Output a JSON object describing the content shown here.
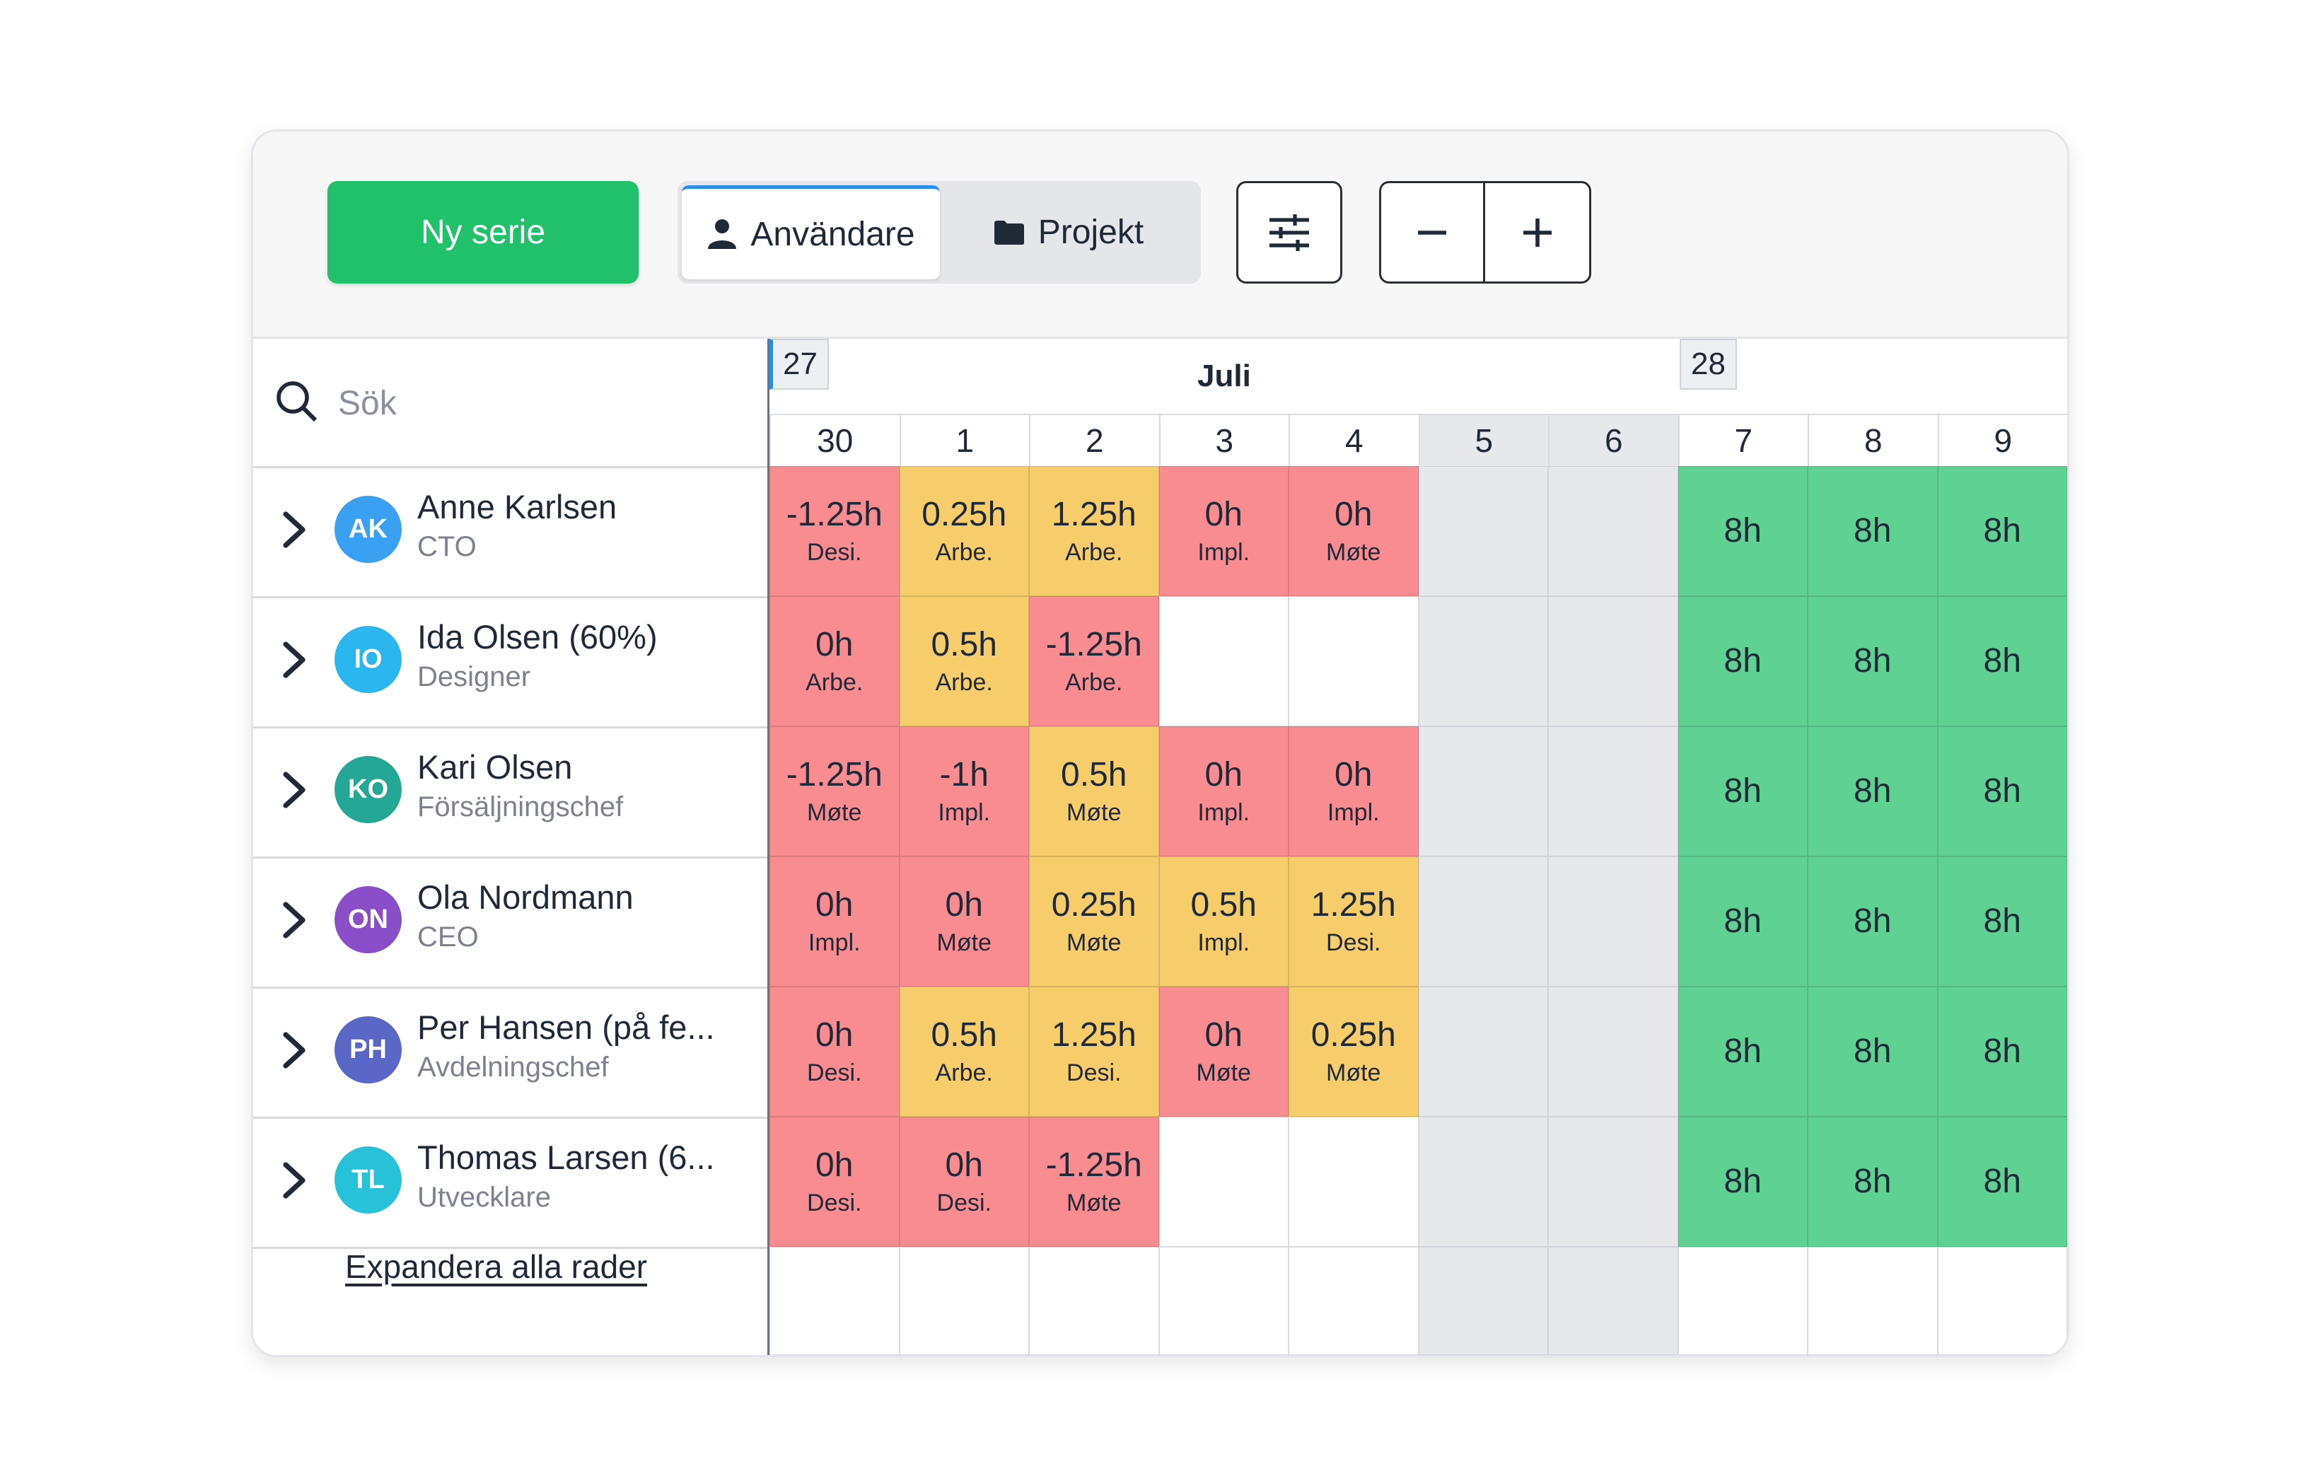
{
  "toolbar": {
    "new_series_label": "Ny serie",
    "view_users_label": "Användare",
    "view_projects_label": "Projekt",
    "filter_icon": "sliders-icon",
    "zoom_out_icon": "minus-icon",
    "zoom_in_icon": "plus-icon"
  },
  "search": {
    "placeholder": "Sök"
  },
  "calendar": {
    "week_a": "27",
    "week_b": "28",
    "month": "Juli",
    "days": [
      "30",
      "1",
      "2",
      "3",
      "4",
      "5",
      "6",
      "7",
      "8",
      "9"
    ],
    "weekend_days": [
      "5",
      "6"
    ]
  },
  "people": [
    {
      "initials": "AK",
      "name": "Anne Karlsen",
      "role": "CTO",
      "avatar_color": "#3aa0f2"
    },
    {
      "initials": "IO",
      "name": "Ida Olsen (60%)",
      "role": "Designer",
      "avatar_color": "#2bb6f0"
    },
    {
      "initials": "KO",
      "name": "Kari Olsen",
      "role": "Försäljningschef",
      "avatar_color": "#24a795"
    },
    {
      "initials": "ON",
      "name": "Ola Nordmann",
      "role": "CEO",
      "avatar_color": "#8a4fc8"
    },
    {
      "initials": "PH",
      "name": "Per Hansen (på fe...",
      "role": "Avdelningschef",
      "avatar_color": "#5b67c7"
    },
    {
      "initials": "TL",
      "name": "Thomas Larsen (6...",
      "role": "Utvecklare",
      "avatar_color": "#27c1d9"
    }
  ],
  "rows": [
    [
      [
        "-1.25h",
        "Desi.",
        "red"
      ],
      [
        "0.25h",
        "Arbe.",
        "yellow"
      ],
      [
        "1.25h",
        "Arbe.",
        "yellow"
      ],
      [
        "0h",
        "Impl.",
        "red"
      ],
      [
        "0h",
        "Møte",
        "red"
      ],
      [
        "",
        "",
        "weekend"
      ],
      [
        "",
        "",
        "weekend"
      ],
      [
        "8h",
        "",
        "green"
      ],
      [
        "8h",
        "",
        "green"
      ],
      [
        "8h",
        "",
        "green"
      ]
    ],
    [
      [
        "0h",
        "Arbe.",
        "red"
      ],
      [
        "0.5h",
        "Arbe.",
        "yellow"
      ],
      [
        "-1.25h",
        "Arbe.",
        "red"
      ],
      [
        "",
        "",
        "empty"
      ],
      [
        "",
        "",
        "empty"
      ],
      [
        "",
        "",
        "weekend"
      ],
      [
        "",
        "",
        "weekend"
      ],
      [
        "8h",
        "",
        "green"
      ],
      [
        "8h",
        "",
        "green"
      ],
      [
        "8h",
        "",
        "green"
      ]
    ],
    [
      [
        "-1.25h",
        "Møte",
        "red"
      ],
      [
        "-1h",
        "Impl.",
        "red"
      ],
      [
        "0.5h",
        "Møte",
        "yellow"
      ],
      [
        "0h",
        "Impl.",
        "red"
      ],
      [
        "0h",
        "Impl.",
        "red"
      ],
      [
        "",
        "",
        "weekend"
      ],
      [
        "",
        "",
        "weekend"
      ],
      [
        "8h",
        "",
        "green"
      ],
      [
        "8h",
        "",
        "green"
      ],
      [
        "8h",
        "",
        "green"
      ]
    ],
    [
      [
        "0h",
        "Impl.",
        "red"
      ],
      [
        "0h",
        "Møte",
        "red"
      ],
      [
        "0.25h",
        "Møte",
        "yellow"
      ],
      [
        "0.5h",
        "Impl.",
        "yellow"
      ],
      [
        "1.25h",
        "Desi.",
        "yellow"
      ],
      [
        "",
        "",
        "weekend"
      ],
      [
        "",
        "",
        "weekend"
      ],
      [
        "8h",
        "",
        "green"
      ],
      [
        "8h",
        "",
        "green"
      ],
      [
        "8h",
        "",
        "green"
      ]
    ],
    [
      [
        "0h",
        "Desi.",
        "red"
      ],
      [
        "0.5h",
        "Arbe.",
        "yellow"
      ],
      [
        "1.25h",
        "Desi.",
        "yellow"
      ],
      [
        "0h",
        "Møte",
        "red"
      ],
      [
        "0.25h",
        "Møte",
        "yellow"
      ],
      [
        "",
        "",
        "weekend"
      ],
      [
        "",
        "",
        "weekend"
      ],
      [
        "8h",
        "",
        "green"
      ],
      [
        "8h",
        "",
        "green"
      ],
      [
        "8h",
        "",
        "green"
      ]
    ],
    [
      [
        "0h",
        "Desi.",
        "red"
      ],
      [
        "0h",
        "Desi.",
        "red"
      ],
      [
        "-1.25h",
        "Møte",
        "red"
      ],
      [
        "",
        "",
        "empty"
      ],
      [
        "",
        "",
        "empty"
      ],
      [
        "",
        "",
        "weekend"
      ],
      [
        "",
        "",
        "weekend"
      ],
      [
        "8h",
        "",
        "green"
      ],
      [
        "8h",
        "",
        "green"
      ],
      [
        "8h",
        "",
        "green"
      ]
    ]
  ],
  "footer": {
    "expand_label": "Expandera alla rader"
  }
}
